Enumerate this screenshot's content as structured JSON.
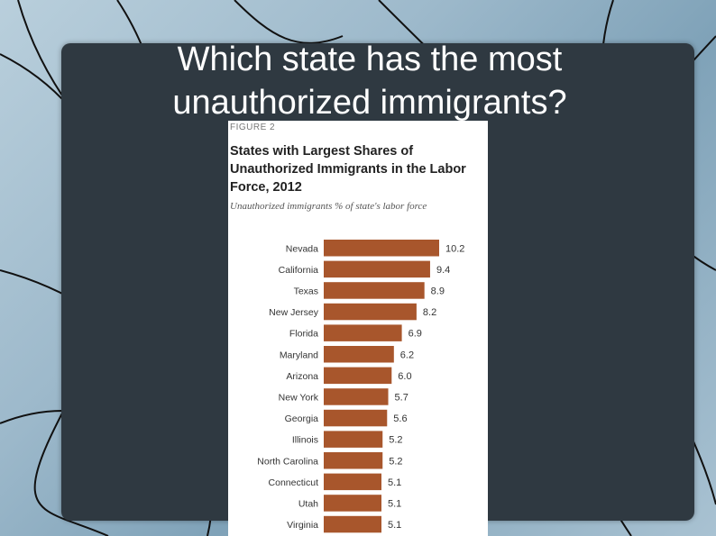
{
  "slide": {
    "title": "Which state has the most unauthorized immigrants?"
  },
  "figure": {
    "label": "FIGURE 2",
    "title": "States with Largest Shares of Unauthorized Immigrants in the Labor Force, 2012",
    "subtitle": "Unauthorized immigrants % of state's labor force"
  },
  "colors": {
    "bar": "#a8562c",
    "panel": "#2f3941"
  },
  "chart_data": {
    "type": "bar",
    "orientation": "horizontal",
    "title": "States with Largest Shares of Unauthorized Immigrants in the Labor Force, 2012",
    "subtitle": "Unauthorized immigrants % of state's labor force",
    "categories": [
      "Nevada",
      "California",
      "Texas",
      "New Jersey",
      "Florida",
      "Maryland",
      "Arizona",
      "New York",
      "Georgia",
      "Illinois",
      "North Carolina",
      "Connecticut",
      "Utah",
      "Virginia"
    ],
    "values": [
      10.2,
      9.4,
      8.9,
      8.2,
      6.9,
      6.2,
      6.0,
      5.7,
      5.6,
      5.2,
      5.2,
      5.1,
      5.1,
      5.1
    ],
    "value_labels": [
      "10.2",
      "9.4",
      "8.9",
      "8.2",
      "6.9",
      "6.2",
      "6.0",
      "5.7",
      "5.6",
      "5.2",
      "5.2",
      "5.1",
      "5.1",
      "5.1"
    ],
    "xlim": [
      0,
      10.2
    ],
    "grid": false,
    "legend": "none"
  }
}
